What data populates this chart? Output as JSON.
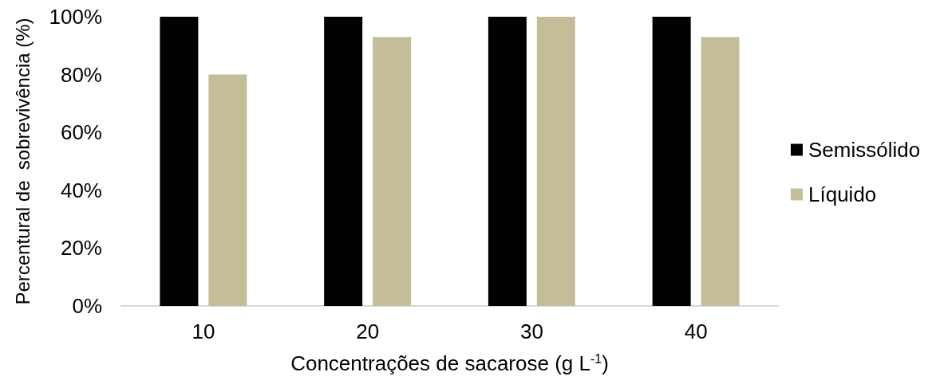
{
  "chart_data": {
    "type": "bar",
    "xlabel": "Concentrações de sacarose (g L$^{-1}$)",
    "ylabel": "Percentural de  sobrevivência (%)",
    "categories": [
      "10",
      "20",
      "30",
      "40"
    ],
    "series": [
      {
        "name": "Semissólido",
        "color": "#000000",
        "values": [
          100,
          100,
          100,
          100
        ]
      },
      {
        "name": "Líquido",
        "color": "#c4bd97",
        "values": [
          80,
          93,
          100,
          93
        ]
      }
    ],
    "ylim": [
      0,
      100
    ],
    "yticks": [
      {
        "value": 0,
        "label": "0%"
      },
      {
        "value": 20,
        "label": "20%"
      },
      {
        "value": 40,
        "label": "40%"
      },
      {
        "value": 60,
        "label": "60%"
      },
      {
        "value": 80,
        "label": "80%"
      },
      {
        "value": 100,
        "label": "100%"
      }
    ],
    "grid": false,
    "legend": "right"
  }
}
